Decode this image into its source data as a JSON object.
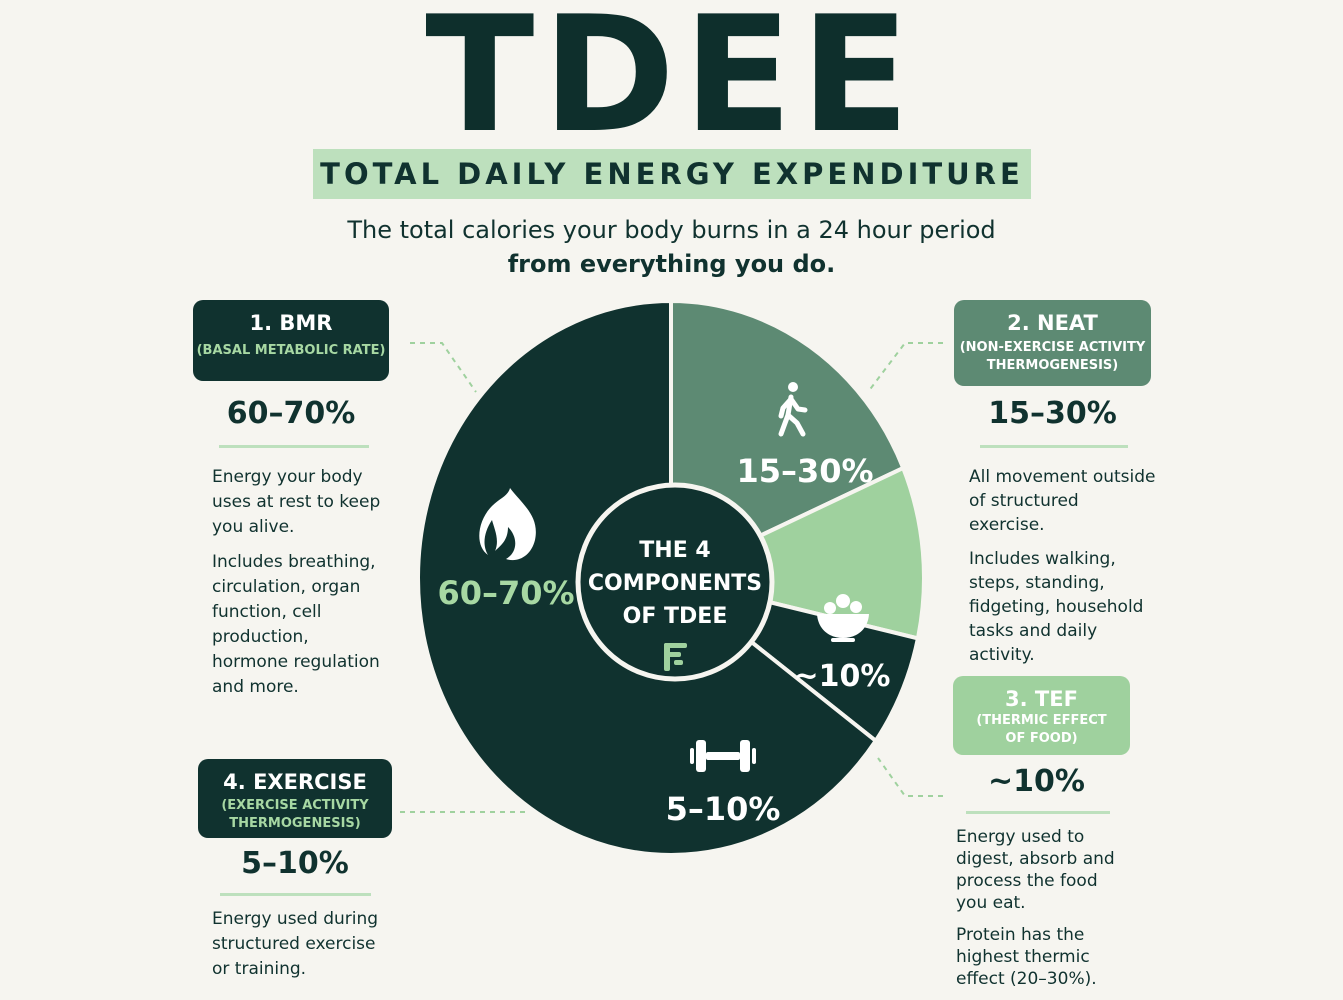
{
  "header": {
    "title": "TDEE",
    "subtitle": "TOTAL DAILY ENERGY EXPENDITURE",
    "tagline_line1": "The total calories your body burns in a 24 hour period",
    "tagline_line2": "from everything you do."
  },
  "center": {
    "line1": "THE 4",
    "line2": "COMPONENTS",
    "line3": "OF TDEE",
    "logo_icon": "brand-f-logo-icon"
  },
  "colors": {
    "dark": "#10322f",
    "mid": "#5d8a73",
    "light": "#9fd19e",
    "accent_text": "#a7d8a3",
    "background": "#f6f5f0"
  },
  "chart_data": {
    "type": "pie",
    "title": "",
    "slices": [
      {
        "key": "bmr",
        "label": "60–70%",
        "value": 65,
        "color": "#10322f",
        "icon": "flame-icon"
      },
      {
        "key": "neat",
        "label": "15–30%",
        "value": 18.5,
        "color": "#5d8a73",
        "icon": "walking-person-icon"
      },
      {
        "key": "tef",
        "label": "~10%",
        "value": 10,
        "color": "#9fd19e",
        "icon": "food-bowl-icon"
      },
      {
        "key": "exercise",
        "label": "5–10%",
        "value": 6.5,
        "color": "#10322f",
        "icon": "dumbbell-icon"
      }
    ]
  },
  "panels": {
    "bmr": {
      "title": "1. BMR",
      "subtitle": "(BASAL METABOLIC RATE)",
      "percent": "60–70%",
      "desc1": "Energy your body uses at rest to keep you alive.",
      "desc2": "Includes breathing, circulation, organ function, cell production, hormone regulation and more."
    },
    "neat": {
      "title": "2. NEAT",
      "subtitle": "(NON-EXERCISE ACTIVITY THERMOGENESIS)",
      "percent": "15–30%",
      "desc1": "All movement outside of structured exercise.",
      "desc2": "Includes walking, steps, standing, fidgeting, household tasks and daily activity."
    },
    "tef": {
      "title": "3. TEF",
      "subtitle": "(THERMIC EFFECT OF FOOD)",
      "percent": "~10%",
      "desc1": "Energy used to digest, absorb and process the food you eat.",
      "desc2": "Protein has the highest thermic effect (20–30%)."
    },
    "exercise": {
      "title": "4. EXERCISE",
      "subtitle": "(EXERCISE ACTIVITY THERMOGENESIS)",
      "percent": "5–10%",
      "desc1": "Energy used during structured exercise or training."
    }
  }
}
